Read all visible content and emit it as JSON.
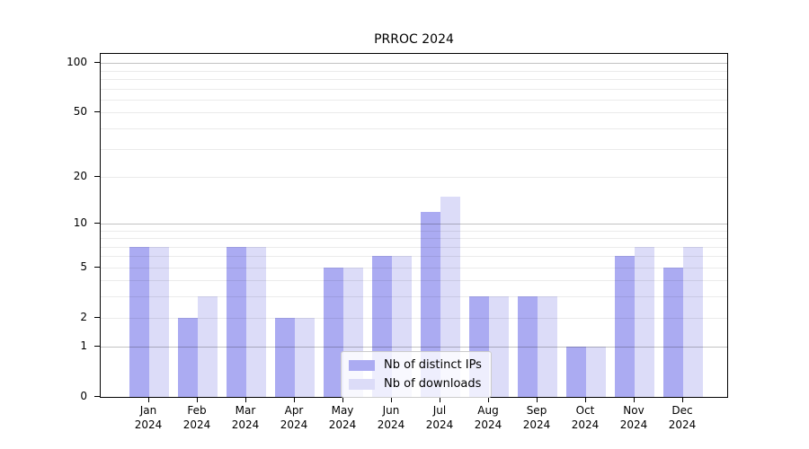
{
  "chart_data": {
    "type": "bar",
    "title": "PRROC 2024",
    "year_label": "2024",
    "categories": [
      "Jan",
      "Feb",
      "Mar",
      "Apr",
      "May",
      "Jun",
      "Jul",
      "Aug",
      "Sep",
      "Oct",
      "Nov",
      "Dec"
    ],
    "series": [
      {
        "name": "Nb of distinct IPs",
        "color": "#ababf2",
        "values": [
          7,
          2,
          7,
          2,
          5,
          6,
          12,
          3,
          3,
          1,
          6,
          5
        ]
      },
      {
        "name": "Nb of downloads",
        "color": "#dcdcf8",
        "values": [
          7,
          3,
          7,
          2,
          5,
          6,
          15,
          3,
          3,
          1,
          7,
          7
        ]
      }
    ],
    "yscale": "log1p",
    "ylim": [
      0,
      114
    ],
    "ytick_values": [
      0,
      1,
      2,
      5,
      10,
      20,
      50,
      100
    ],
    "ytick_labels": [
      "0",
      "1",
      "2",
      "5",
      "10",
      "20",
      "50",
      "100"
    ],
    "grid_major_values": [
      1,
      10,
      100
    ],
    "grid_minor_values": [
      2,
      3,
      4,
      5,
      6,
      7,
      8,
      9,
      20,
      30,
      40,
      50,
      60,
      70,
      80,
      90
    ],
    "legend_position": "lower center",
    "grid": true,
    "colors": {
      "axis": "#000000",
      "major_grid": "rgba(0,0,0,0.24)",
      "minor_grid": "rgba(0,0,0,0.08)",
      "background": "#ffffff"
    }
  }
}
